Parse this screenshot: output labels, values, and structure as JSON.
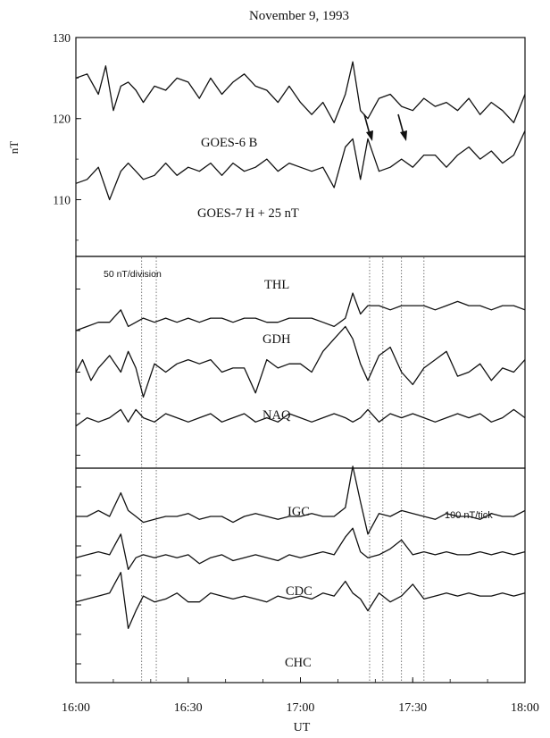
{
  "title": "November 9, 1993",
  "xlabel": "UT",
  "x_ticks": [
    "16:00",
    "16:30",
    "17:00",
    "17:30",
    "18:00"
  ],
  "colors": {
    "ink": "#111111",
    "background": "#ffffff"
  },
  "chart_data": [
    {
      "type": "line",
      "panel": "top",
      "ylabel": "nT",
      "ylim": [
        103,
        130
      ],
      "y_ticks": [
        110,
        120,
        130
      ],
      "x_range_hours": [
        16.0,
        18.0
      ],
      "series": [
        {
          "name": "GOES-6 B",
          "x": [
            16.0,
            16.05,
            16.1,
            16.133,
            16.167,
            16.2,
            16.233,
            16.267,
            16.3,
            16.35,
            16.4,
            16.45,
            16.5,
            16.55,
            16.6,
            16.65,
            16.7,
            16.75,
            16.8,
            16.85,
            16.9,
            16.95,
            17.0,
            17.05,
            17.1,
            17.15,
            17.2,
            17.233,
            17.267,
            17.3,
            17.35,
            17.4,
            17.45,
            17.5,
            17.55,
            17.6,
            17.65,
            17.7,
            17.75,
            17.8,
            17.85,
            17.9,
            17.95,
            18.0
          ],
          "values": [
            125.0,
            125.5,
            123.0,
            126.5,
            121.0,
            124.0,
            124.5,
            123.5,
            122.0,
            124.0,
            123.5,
            125.0,
            124.5,
            122.5,
            125.0,
            123.0,
            124.5,
            125.5,
            124.0,
            123.5,
            122.0,
            124.0,
            122.0,
            120.5,
            122.0,
            119.5,
            123.0,
            127.0,
            121.0,
            120.0,
            122.5,
            123.0,
            121.5,
            121.0,
            122.5,
            121.5,
            122.0,
            121.0,
            122.5,
            120.5,
            122.0,
            121.0,
            119.5,
            123.0
          ]
        },
        {
          "name": "GOES-7 H + 25 nT",
          "x": [
            16.0,
            16.05,
            16.1,
            16.15,
            16.2,
            16.233,
            16.267,
            16.3,
            16.35,
            16.4,
            16.45,
            16.5,
            16.55,
            16.6,
            16.65,
            16.7,
            16.75,
            16.8,
            16.85,
            16.9,
            16.95,
            17.0,
            17.05,
            17.1,
            17.15,
            17.2,
            17.233,
            17.267,
            17.3,
            17.35,
            17.4,
            17.45,
            17.5,
            17.55,
            17.6,
            17.65,
            17.7,
            17.75,
            17.8,
            17.85,
            17.9,
            17.95,
            18.0
          ],
          "values": [
            112.0,
            112.5,
            114.0,
            110.0,
            113.5,
            114.5,
            113.5,
            112.5,
            113.0,
            114.5,
            113.0,
            114.0,
            113.5,
            114.5,
            113.0,
            114.5,
            113.5,
            114.0,
            115.0,
            113.5,
            114.5,
            114.0,
            113.5,
            114.0,
            111.5,
            116.5,
            117.5,
            112.5,
            117.5,
            113.5,
            114.0,
            115.0,
            114.0,
            115.5,
            115.5,
            114.0,
            115.5,
            116.5,
            115.0,
            116.0,
            114.5,
            115.5,
            118.5
          ]
        }
      ],
      "annotations": [
        "down-arrow-1",
        "down-arrow-2"
      ]
    },
    {
      "type": "line",
      "panel": "middle",
      "scale_label": "50 nT/division",
      "x_range_hours": [
        16.0,
        18.0
      ],
      "series": [
        {
          "name": "THL",
          "x": [
            16.0,
            16.05,
            16.1,
            16.15,
            16.2,
            16.233,
            16.267,
            16.3,
            16.35,
            16.4,
            16.45,
            16.5,
            16.55,
            16.6,
            16.65,
            16.7,
            16.75,
            16.8,
            16.85,
            16.9,
            16.95,
            17.0,
            17.05,
            17.1,
            17.15,
            17.2,
            17.233,
            17.267,
            17.3,
            17.35,
            17.4,
            17.45,
            17.5,
            17.55,
            17.6,
            17.65,
            17.7,
            17.75,
            17.8,
            17.85,
            17.9,
            17.95,
            18.0
          ],
          "values": [
            0.0,
            0.5,
            1.0,
            1.0,
            2.5,
            0.5,
            1.0,
            1.5,
            1.0,
            1.5,
            1.0,
            1.5,
            1.0,
            1.5,
            1.5,
            1.0,
            1.5,
            1.5,
            1.0,
            1.0,
            1.5,
            1.5,
            1.5,
            1.0,
            0.5,
            1.5,
            4.5,
            2.0,
            3.0,
            3.0,
            2.5,
            3.0,
            3.0,
            3.0,
            2.5,
            3.0,
            3.5,
            3.0,
            3.0,
            2.5,
            3.0,
            3.0,
            2.5
          ]
        },
        {
          "name": "GDH",
          "x": [
            16.0,
            16.03,
            16.067,
            16.1,
            16.15,
            16.2,
            16.233,
            16.267,
            16.3,
            16.35,
            16.4,
            16.45,
            16.5,
            16.55,
            16.6,
            16.65,
            16.7,
            16.75,
            16.8,
            16.85,
            16.9,
            16.95,
            17.0,
            17.05,
            17.1,
            17.15,
            17.2,
            17.233,
            17.267,
            17.3,
            17.35,
            17.4,
            17.45,
            17.5,
            17.55,
            17.6,
            17.65,
            17.7,
            17.75,
            17.8,
            17.85,
            17.9,
            17.95,
            18.0
          ],
          "values": [
            -5.0,
            -3.5,
            -6.0,
            -4.5,
            -3.0,
            -5.0,
            -2.5,
            -4.5,
            -8.0,
            -4.0,
            -5.0,
            -4.0,
            -3.5,
            -4.0,
            -3.5,
            -5.0,
            -4.5,
            -4.5,
            -7.5,
            -3.5,
            -4.5,
            -4.0,
            -4.0,
            -5.0,
            -2.5,
            -1.0,
            0.5,
            -1.0,
            -4.0,
            -6.0,
            -3.0,
            -2.0,
            -5.0,
            -6.5,
            -4.5,
            -3.5,
            -2.5,
            -5.5,
            -5.0,
            -4.0,
            -6.0,
            -4.5,
            -5.0,
            -3.5
          ]
        },
        {
          "name": "NAQ",
          "x": [
            16.0,
            16.05,
            16.1,
            16.15,
            16.2,
            16.233,
            16.267,
            16.3,
            16.35,
            16.4,
            16.45,
            16.5,
            16.55,
            16.6,
            16.65,
            16.7,
            16.75,
            16.8,
            16.85,
            16.9,
            16.95,
            17.0,
            17.05,
            17.1,
            17.15,
            17.2,
            17.233,
            17.267,
            17.3,
            17.35,
            17.4,
            17.45,
            17.5,
            17.55,
            17.6,
            17.65,
            17.7,
            17.75,
            17.8,
            17.85,
            17.9,
            17.95,
            18.0
          ],
          "values": [
            -11.5,
            -10.5,
            -11.0,
            -10.5,
            -9.5,
            -11.0,
            -9.5,
            -10.5,
            -11.0,
            -10.0,
            -10.5,
            -11.0,
            -10.5,
            -10.0,
            -11.0,
            -10.5,
            -10.0,
            -11.0,
            -10.5,
            -11.0,
            -10.0,
            -10.5,
            -11.0,
            -10.5,
            -10.0,
            -10.5,
            -11.0,
            -10.5,
            -9.5,
            -11.0,
            -10.0,
            -10.5,
            -10.0,
            -10.5,
            -11.0,
            -10.5,
            -10.0,
            -10.5,
            -10.0,
            -11.0,
            -10.5,
            -9.5,
            -10.5
          ]
        }
      ]
    },
    {
      "type": "line",
      "panel": "bottom",
      "scale_label": "100 nT/tick",
      "x_range_hours": [
        16.0,
        18.0
      ],
      "series": [
        {
          "name": "IGC",
          "x": [
            16.0,
            16.05,
            16.1,
            16.15,
            16.2,
            16.233,
            16.267,
            16.3,
            16.35,
            16.4,
            16.45,
            16.5,
            16.55,
            16.6,
            16.65,
            16.7,
            16.75,
            16.8,
            16.85,
            16.9,
            16.95,
            17.0,
            17.05,
            17.1,
            17.15,
            17.2,
            17.233,
            17.267,
            17.3,
            17.35,
            17.4,
            17.45,
            17.5,
            17.55,
            17.6,
            17.65,
            17.7,
            17.75,
            17.8,
            17.85,
            17.9,
            17.95,
            18.0
          ],
          "values": [
            0.0,
            0.0,
            0.2,
            0.0,
            0.8,
            0.2,
            0.0,
            -0.2,
            -0.1,
            0.0,
            0.0,
            0.1,
            -0.1,
            0.0,
            0.0,
            -0.2,
            0.0,
            0.1,
            0.0,
            -0.1,
            0.0,
            0.0,
            0.1,
            0.0,
            0.0,
            0.3,
            1.7,
            0.5,
            -0.6,
            0.1,
            0.0,
            0.2,
            0.1,
            0.0,
            -0.1,
            0.1,
            0.0,
            0.0,
            -0.1,
            0.1,
            0.0,
            0.0,
            0.2
          ]
        },
        {
          "name": "CDC",
          "x": [
            16.0,
            16.05,
            16.1,
            16.15,
            16.2,
            16.233,
            16.267,
            16.3,
            16.35,
            16.4,
            16.45,
            16.5,
            16.55,
            16.6,
            16.65,
            16.7,
            16.75,
            16.8,
            16.85,
            16.9,
            16.95,
            17.0,
            17.05,
            17.1,
            17.15,
            17.2,
            17.233,
            17.267,
            17.3,
            17.35,
            17.4,
            17.45,
            17.5,
            17.55,
            17.6,
            17.65,
            17.7,
            17.75,
            17.8,
            17.85,
            17.9,
            17.95,
            18.0
          ],
          "values": [
            -1.4,
            -1.3,
            -1.2,
            -1.3,
            -0.6,
            -1.8,
            -1.4,
            -1.3,
            -1.4,
            -1.3,
            -1.4,
            -1.3,
            -1.6,
            -1.4,
            -1.3,
            -1.5,
            -1.4,
            -1.3,
            -1.4,
            -1.5,
            -1.3,
            -1.4,
            -1.3,
            -1.2,
            -1.3,
            -0.7,
            -0.4,
            -1.2,
            -1.4,
            -1.3,
            -1.1,
            -0.8,
            -1.3,
            -1.2,
            -1.3,
            -1.2,
            -1.3,
            -1.3,
            -1.2,
            -1.3,
            -1.2,
            -1.3,
            -1.2
          ]
        },
        {
          "name": "CHC",
          "x": [
            16.0,
            16.05,
            16.1,
            16.15,
            16.2,
            16.233,
            16.267,
            16.3,
            16.35,
            16.4,
            16.45,
            16.5,
            16.55,
            16.6,
            16.65,
            16.7,
            16.75,
            16.8,
            16.85,
            16.9,
            16.95,
            17.0,
            17.05,
            17.1,
            17.15,
            17.2,
            17.233,
            17.267,
            17.3,
            17.35,
            17.4,
            17.45,
            17.5,
            17.55,
            17.6,
            17.65,
            17.7,
            17.75,
            17.8,
            17.85,
            17.9,
            17.95,
            18.0
          ],
          "values": [
            -2.9,
            -2.8,
            -2.7,
            -2.6,
            -1.9,
            -3.8,
            -3.2,
            -2.7,
            -2.9,
            -2.8,
            -2.6,
            -2.9,
            -2.9,
            -2.6,
            -2.7,
            -2.8,
            -2.7,
            -2.8,
            -2.9,
            -2.7,
            -2.8,
            -2.7,
            -2.8,
            -2.6,
            -2.7,
            -2.2,
            -2.6,
            -2.8,
            -3.2,
            -2.6,
            -2.9,
            -2.7,
            -2.3,
            -2.8,
            -2.7,
            -2.6,
            -2.7,
            -2.6,
            -2.7,
            -2.7,
            -2.6,
            -2.7,
            -2.6
          ]
        }
      ]
    }
  ],
  "marker_lines_hours": [
    16.293,
    16.358,
    17.308,
    17.367,
    17.45,
    17.55
  ]
}
